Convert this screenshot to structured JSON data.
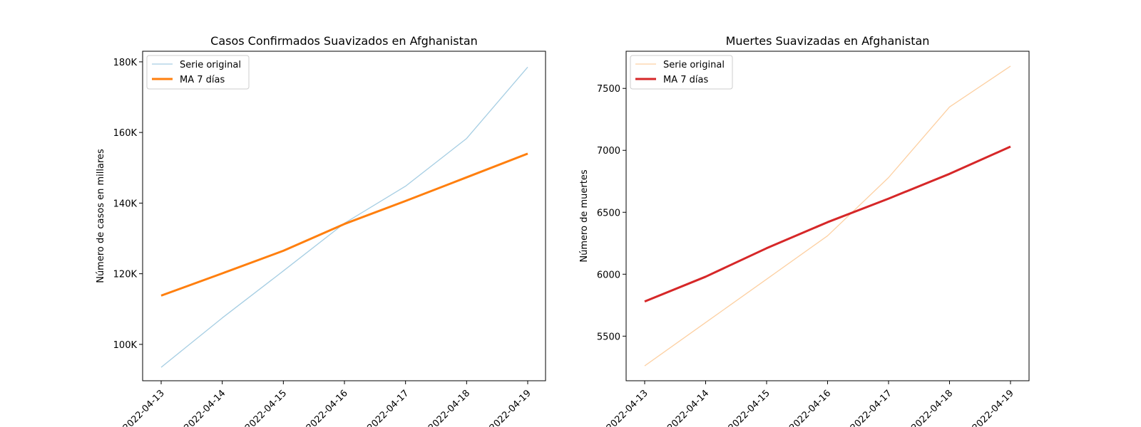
{
  "chart_data": [
    {
      "type": "line",
      "title": "Casos Confirmados Suavizados en Afghanistan",
      "xlabel": "",
      "ylabel": "Número de casos en millares",
      "categories": [
        "2022-04-13",
        "2022-04-14",
        "2022-04-15",
        "2022-04-16",
        "2022-04-17",
        "2022-04-18",
        "2022-04-19"
      ],
      "ylim": [
        89700,
        183000
      ],
      "yticks": [
        100000,
        120000,
        140000,
        160000,
        180000
      ],
      "ytick_labels": [
        "100K",
        "120K",
        "140K",
        "160K",
        "180K"
      ],
      "grid": false,
      "legend_position": "top-left",
      "series": [
        {
          "name": "Serie original",
          "color": "#a6cee3",
          "width": "thin",
          "values": [
            93500,
            107500,
            120800,
            134300,
            144800,
            158300,
            178500
          ]
        },
        {
          "name": "MA 7 días",
          "color": "#ff7f0e",
          "width": "thick",
          "values": [
            113800,
            120100,
            126500,
            134100,
            140600,
            147300,
            154000
          ]
        }
      ]
    },
    {
      "type": "line",
      "title": "Muertes Suavizadas en Afghanistan",
      "xlabel": "",
      "ylabel": "Número de muertes",
      "categories": [
        "2022-04-13",
        "2022-04-14",
        "2022-04-15",
        "2022-04-16",
        "2022-04-17",
        "2022-04-18",
        "2022-04-19"
      ],
      "ylim": [
        5140,
        7800
      ],
      "yticks": [
        5500,
        6000,
        6500,
        7000,
        7500
      ],
      "ytick_labels": [
        "5500",
        "6000",
        "6500",
        "7000",
        "7500"
      ],
      "grid": false,
      "legend_position": "top-left",
      "series": [
        {
          "name": "Serie original",
          "color": "#fdd0a2",
          "width": "thin",
          "values": [
            5260,
            5610,
            5960,
            6310,
            6780,
            7350,
            7680
          ]
        },
        {
          "name": "MA 7 días",
          "color": "#d62728",
          "width": "thick",
          "values": [
            5780,
            5980,
            6210,
            6420,
            6610,
            6810,
            7030
          ]
        }
      ]
    }
  ]
}
